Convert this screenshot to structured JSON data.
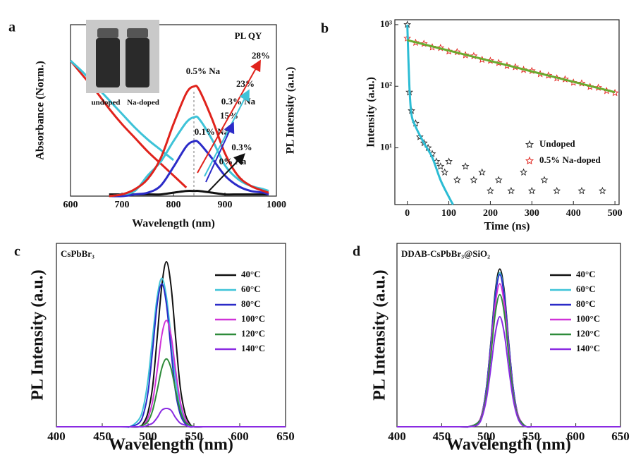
{
  "chart_data": [
    {
      "type": "line",
      "panel": "a",
      "xlabel": "Wavelength (nm)",
      "ylabel": "Absorbance (Norm.)",
      "y2label": "PL Intensity (a.u.)",
      "xlim": [
        600,
        1000
      ],
      "xticks": [
        600,
        700,
        800,
        900,
        1000
      ],
      "ylim": [
        0,
        1
      ],
      "x": [
        600,
        625,
        650,
        675,
        700,
        725,
        750,
        775,
        800,
        825,
        840,
        850,
        875,
        900,
        925,
        950,
        975,
        985
      ],
      "series": [
        {
          "color": "#e0231c",
          "values": [
            0.79,
            0.7,
            0.61,
            0.51,
            0.42,
            0.34,
            0.26,
            0.19,
            0.12,
            0.05,
            null,
            null,
            null,
            null,
            null,
            null,
            null,
            null
          ]
        },
        {
          "color": "#3ec3d8",
          "values": [
            0.79,
            0.72,
            0.64,
            0.56,
            0.48,
            0.4,
            0.33,
            0.27,
            0.21,
            null,
            null,
            null,
            null,
            null,
            null,
            null,
            null,
            null
          ]
        },
        {
          "color": "#111111",
          "values": [
            null,
            null,
            null,
            0.01,
            0.01,
            0.01,
            0.01,
            0.01,
            0.02,
            0.03,
            0.03,
            0.03,
            0.02,
            0.01,
            0.01,
            0.01,
            0.01,
            0.01
          ]
        },
        {
          "color": "#2b2bc8",
          "values": [
            null,
            null,
            null,
            0,
            0,
            0.01,
            0.02,
            0.06,
            0.17,
            0.29,
            0.32,
            0.31,
            0.22,
            0.12,
            0.06,
            0.03,
            0.02,
            0.01
          ]
        },
        {
          "color": "#3ec3d8",
          "values": [
            null,
            null,
            null,
            0,
            0.01,
            0.03,
            0.12,
            0.2,
            0.32,
            0.43,
            0.46,
            0.45,
            0.33,
            0.18,
            0.1,
            0.06,
            0.04,
            0.03
          ]
        },
        {
          "color": "#e0231c",
          "values": [
            null,
            null,
            null,
            0,
            0.01,
            0.04,
            0.1,
            0.22,
            0.42,
            0.6,
            0.64,
            0.62,
            0.45,
            0.25,
            0.12,
            0.06,
            0.03,
            0.02
          ]
        }
      ],
      "annotations": [
        "PL QY",
        "28%",
        "0.5% Na",
        "23%",
        "0.3% Na",
        "15%",
        "0.1% Na",
        "0.3%",
        "0% Na",
        "undoped",
        "Na-doped"
      ]
    },
    {
      "type": "scatter",
      "panel": "b",
      "xlabel": "Time (ns)",
      "ylabel": "Intensity (a.u.)",
      "xlim": [
        -30,
        510
      ],
      "xticks": [
        0,
        100,
        200,
        300,
        400,
        500
      ],
      "ylim": [
        1.2,
        1200
      ],
      "ylog": true,
      "yticks": [
        {
          "value": 10,
          "label": "10¹"
        },
        {
          "value": 100,
          "label": "10²"
        },
        {
          "value": 1000,
          "label": "10³"
        }
      ],
      "legend": "center right",
      "series": [
        {
          "name": "Undoped",
          "color": "#222222",
          "x": [
            0,
            5,
            10,
            20,
            30,
            40,
            50,
            60,
            70,
            80,
            90,
            100,
            120,
            140,
            160,
            180,
            200,
            220,
            250,
            280,
            300,
            330,
            360,
            420,
            470
          ],
          "values": [
            1000,
            80,
            40,
            25,
            15,
            12,
            10,
            8,
            6,
            5,
            4,
            6,
            3,
            5,
            3,
            4,
            2,
            3,
            2,
            4,
            2,
            3,
            2,
            2,
            2
          ]
        },
        {
          "name": "0.5% Na-doped",
          "color": "#e0231c",
          "x": [
            0,
            20,
            40,
            60,
            80,
            100,
            120,
            140,
            160,
            180,
            200,
            220,
            240,
            260,
            280,
            300,
            320,
            340,
            360,
            380,
            400,
            420,
            440,
            460,
            480,
            500
          ],
          "values": [
            600,
            510,
            490,
            430,
            420,
            370,
            360,
            320,
            310,
            270,
            260,
            240,
            215,
            205,
            185,
            178,
            158,
            150,
            135,
            130,
            115,
            112,
            98,
            95,
            84,
            78
          ]
        }
      ],
      "fits": [
        {
          "color": "#2bbcd4",
          "x": [
            0,
            5,
            10,
            20,
            40,
            60,
            80,
            100,
            110
          ],
          "values": [
            1000,
            100,
            35,
            22,
            12,
            7,
            3,
            1.6,
            1.2
          ]
        },
        {
          "color": "#6aab2e",
          "x": [
            0,
            100,
            200,
            300,
            400,
            500
          ],
          "values": [
            560,
            379,
            257,
            174,
            118,
            80
          ]
        }
      ]
    },
    {
      "type": "line",
      "panel": "c",
      "title": "CsPbBr₃",
      "xlabel": "Wavelength (nm)",
      "ylabel": "PL Intensity (a.u.)",
      "xlim": [
        400,
        650
      ],
      "xticks": [
        400,
        450,
        500,
        550,
        600,
        650
      ],
      "ylim": [
        0,
        1
      ],
      "legend": "upper right",
      "x": [
        400,
        470,
        480,
        490,
        495,
        500,
        505,
        510,
        515,
        520,
        525,
        530,
        535,
        540,
        545,
        550,
        560,
        570,
        650
      ],
      "series": [
        {
          "name": "40°C",
          "color": "#111111",
          "values": [
            0,
            0,
            0,
            0,
            0.02,
            0.08,
            0.22,
            0.49,
            0.77,
            0.9,
            0.77,
            0.49,
            0.22,
            0.08,
            0.02,
            0,
            0,
            0,
            0
          ]
        },
        {
          "name": "60°C",
          "color": "#3ec3d8",
          "values": [
            0,
            0,
            0,
            0.04,
            0.11,
            0.26,
            0.49,
            0.71,
            0.81,
            0.71,
            0.49,
            0.26,
            0.11,
            0.04,
            0.01,
            0,
            0,
            0,
            0
          ]
        },
        {
          "name": "80°C",
          "color": "#2b2bc8",
          "values": [
            0,
            0,
            0,
            0.02,
            0.07,
            0.19,
            0.42,
            0.67,
            0.78,
            0.67,
            0.42,
            0.19,
            0.07,
            0.02,
            0,
            0,
            0,
            0,
            0
          ]
        },
        {
          "name": "100°C",
          "color": "#d033d8",
          "values": [
            0,
            0,
            0,
            0,
            0.01,
            0.05,
            0.14,
            0.31,
            0.5,
            0.58,
            0.5,
            0.31,
            0.14,
            0.05,
            0.01,
            0,
            0,
            0,
            0
          ]
        },
        {
          "name": "120°C",
          "color": "#2e8b3a",
          "values": [
            0,
            0,
            0,
            0,
            0.01,
            0.03,
            0.09,
            0.2,
            0.32,
            0.37,
            0.32,
            0.2,
            0.09,
            0.03,
            0.01,
            0,
            0,
            0,
            0
          ]
        },
        {
          "name": "140°C",
          "color": "#8a2be2",
          "values": [
            0,
            0,
            0,
            0,
            0,
            0.01,
            0.02,
            0.05,
            0.09,
            0.1,
            0.09,
            0.05,
            0.02,
            0.01,
            0,
            0,
            0,
            0,
            0
          ]
        }
      ]
    },
    {
      "type": "line",
      "panel": "d",
      "title": "DDAB-CsPbBr₃@SiO₂",
      "xlabel": "Wavelength (nm)",
      "ylabel": "PL Intensity (a.u.)",
      "xlim": [
        400,
        650
      ],
      "xticks": [
        400,
        450,
        500,
        550,
        600,
        650
      ],
      "ylim": [
        0,
        1
      ],
      "legend": "upper right",
      "x": [
        400,
        470,
        480,
        490,
        495,
        500,
        505,
        510,
        515,
        520,
        525,
        530,
        535,
        540,
        545,
        550,
        560,
        570,
        650
      ],
      "series": [
        {
          "name": "40°C",
          "color": "#111111",
          "values": [
            0,
            0,
            0,
            0.02,
            0.07,
            0.21,
            0.46,
            0.74,
            0.86,
            0.74,
            0.46,
            0.21,
            0.07,
            0.02,
            0,
            0,
            0,
            0,
            0
          ]
        },
        {
          "name": "60°C",
          "color": "#3ec3d8",
          "values": [
            0,
            0,
            0,
            0.02,
            0.07,
            0.21,
            0.45,
            0.72,
            0.84,
            0.72,
            0.45,
            0.21,
            0.07,
            0.02,
            0,
            0,
            0,
            0,
            0
          ]
        },
        {
          "name": "80°C",
          "color": "#2b2bc8",
          "values": [
            0,
            0,
            0,
            0.02,
            0.07,
            0.21,
            0.45,
            0.71,
            0.83,
            0.71,
            0.45,
            0.21,
            0.07,
            0.02,
            0,
            0,
            0,
            0,
            0
          ]
        },
        {
          "name": "100°C",
          "color": "#d033d8",
          "values": [
            0,
            0,
            0,
            0.02,
            0.07,
            0.19,
            0.42,
            0.67,
            0.78,
            0.67,
            0.42,
            0.19,
            0.07,
            0.02,
            0,
            0,
            0,
            0,
            0
          ]
        },
        {
          "name": "120°C",
          "color": "#2e8b3a",
          "values": [
            0,
            0,
            0,
            0.02,
            0.06,
            0.18,
            0.39,
            0.62,
            0.72,
            0.62,
            0.39,
            0.18,
            0.06,
            0.02,
            0,
            0,
            0,
            0,
            0
          ]
        },
        {
          "name": "140°C",
          "color": "#8a2be2",
          "values": [
            0,
            0,
            0,
            0.01,
            0.05,
            0.15,
            0.32,
            0.51,
            0.6,
            0.51,
            0.32,
            0.15,
            0.05,
            0.01,
            0,
            0,
            0,
            0,
            0
          ]
        }
      ]
    }
  ]
}
